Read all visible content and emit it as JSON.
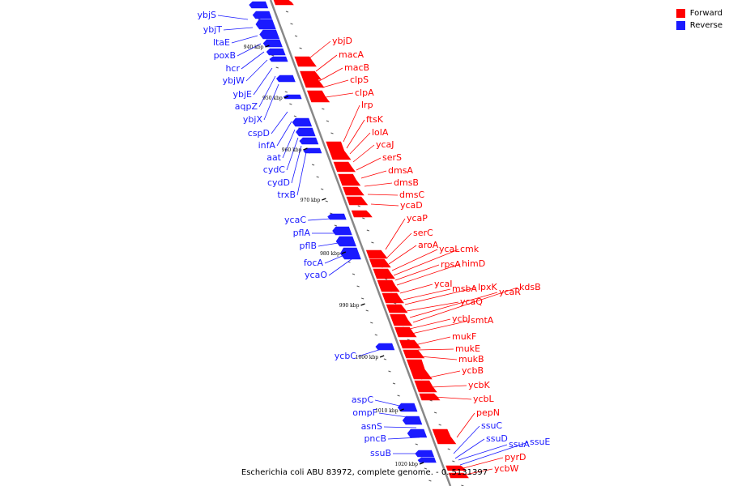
{
  "legend": {
    "forward_label": "Forward",
    "reverse_label": "Reverse"
  },
  "colors": {
    "forward": "#ff0000",
    "reverse": "#1a1aff",
    "axis": "#888888"
  },
  "caption": "Escherichia coli ABU 83972, complete genome. - 0..5131397",
  "ticks": [
    "940 kbp",
    "950 kbp",
    "960 kbp",
    "970 kbp",
    "980 kbp",
    "990 kbp",
    "1000 kbp",
    "1010 kbp",
    "1020 kbp"
  ],
  "genes": {
    "reverse": [
      "ybjS",
      "ybjT",
      "ltaE",
      "poxB",
      "hcr",
      "ybjW",
      "ybjE",
      "aqpZ",
      "ybjX",
      "cspD",
      "infA",
      "aat",
      "cydC",
      "cydD",
      "trxB",
      "ycaC",
      "pflA",
      "pflB",
      "focA",
      "ycaO",
      "ycbC",
      "aspC",
      "ompF",
      "asnS",
      "pncB",
      "ssuB",
      "ssuC",
      "ssuD",
      "ssuA",
      "ssuE"
    ],
    "forward": [
      "ybjD",
      "macA",
      "macB",
      "clpS",
      "clpA",
      "lrp",
      "ftsK",
      "lolA",
      "ycaJ",
      "serS",
      "dmsA",
      "dmsB",
      "dmsC",
      "ycaD",
      "ycaP",
      "serC",
      "aroA",
      "ycaL",
      "cmk",
      "rpsA",
      "himD",
      "ycaI",
      "msbA",
      "lpxK",
      "ycaQ",
      "ycaR",
      "kdsB",
      "ycbJ",
      "smtA",
      "mukF",
      "mukE",
      "mukB",
      "ycbB",
      "ycbK",
      "ycbL",
      "pepN",
      "pyrD",
      "ycbW"
    ]
  }
}
